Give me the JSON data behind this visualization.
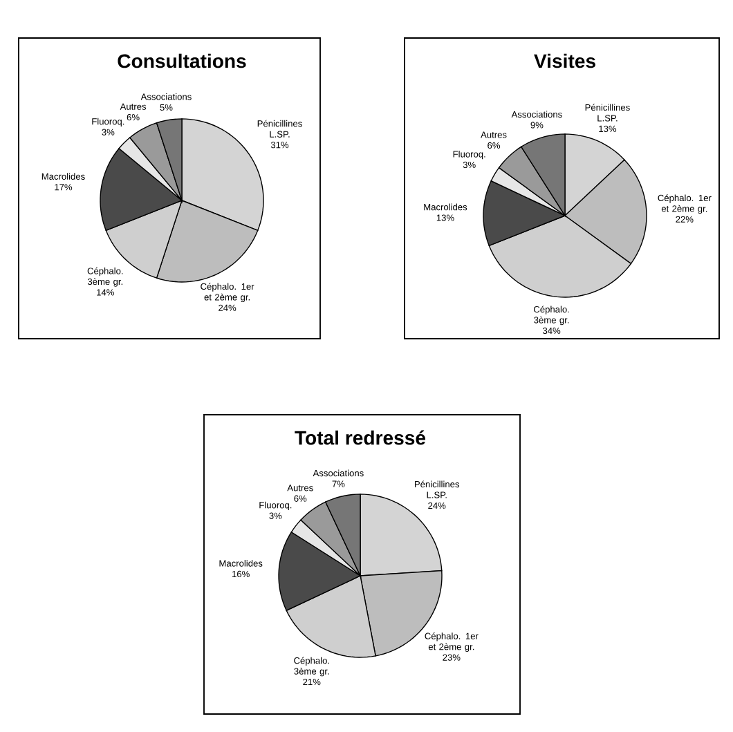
{
  "chart_data": [
    {
      "type": "pie",
      "title": "Consultations",
      "categories": [
        "Pénicillines L.SP.",
        "Céphalo. 1er et 2ème gr.",
        "Céphalo. 3ème gr.",
        "Macrolides",
        "Fluoroq.",
        "Autres",
        "Associations"
      ],
      "values": [
        31,
        24,
        14,
        17,
        3,
        6,
        5
      ],
      "value_labels": [
        "31%",
        "24%",
        "14%",
        "17%",
        "3%",
        "6%",
        "5%"
      ],
      "colors": [
        "#d4d4d4",
        "#bdbdbd",
        "#cfcfcf",
        "#4a4a4a",
        "#e6e6e6",
        "#9a9a9a",
        "#767676"
      ]
    },
    {
      "type": "pie",
      "title": "Visites",
      "categories": [
        "Pénicillines L.SP.",
        "Céphalo. 1er et 2ème gr.",
        "Céphalo. 3ème gr.",
        "Macrolides",
        "Fluoroq.",
        "Autres",
        "Associations"
      ],
      "values": [
        13,
        22,
        34,
        13,
        3,
        6,
        9
      ],
      "value_labels": [
        "13%",
        "22%",
        "34%",
        "13%",
        "3%",
        "6%",
        "9%"
      ],
      "colors": [
        "#d4d4d4",
        "#bdbdbd",
        "#cfcfcf",
        "#4a4a4a",
        "#e6e6e6",
        "#9a9a9a",
        "#767676"
      ]
    },
    {
      "type": "pie",
      "title": "Total redressé",
      "categories": [
        "Pénicillines L.SP.",
        "Céphalo. 1er et 2ème gr.",
        "Céphalo. 3ème gr.",
        "Macrolides",
        "Fluoroq.",
        "Autres",
        "Associations"
      ],
      "values": [
        24,
        23,
        21,
        16,
        3,
        6,
        7
      ],
      "value_labels": [
        "24%",
        "23%",
        "21%",
        "16%",
        "3%",
        "6%",
        "7%"
      ],
      "colors": [
        "#d4d4d4",
        "#bdbdbd",
        "#cfcfcf",
        "#4a4a4a",
        "#e6e6e6",
        "#9a9a9a",
        "#767676"
      ]
    }
  ]
}
